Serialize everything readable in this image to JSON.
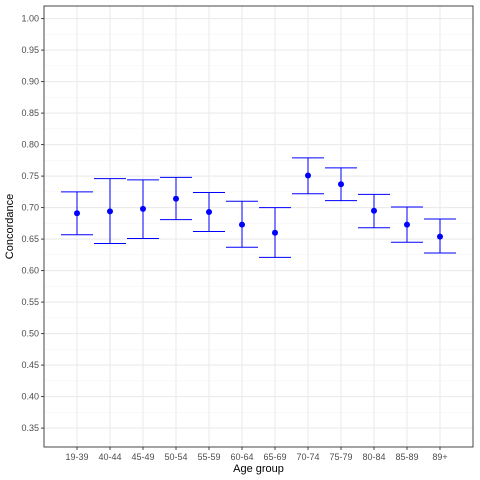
{
  "chart_data": {
    "type": "scatter",
    "subtype": "point-with-error-bars",
    "title": "",
    "xlabel": "Age group",
    "ylabel": "Concordance",
    "categories": [
      "19-39",
      "40-44",
      "45-49",
      "50-54",
      "55-59",
      "60-64",
      "65-69",
      "70-74",
      "75-79",
      "80-84",
      "85-89",
      "89+"
    ],
    "values": [
      0.691,
      0.694,
      0.698,
      0.714,
      0.693,
      0.673,
      0.66,
      0.751,
      0.737,
      0.695,
      0.673,
      0.654
    ],
    "lower": [
      0.657,
      0.643,
      0.651,
      0.681,
      0.662,
      0.637,
      0.621,
      0.722,
      0.711,
      0.668,
      0.645,
      0.628
    ],
    "upper": [
      0.725,
      0.746,
      0.744,
      0.748,
      0.724,
      0.71,
      0.7,
      0.779,
      0.763,
      0.721,
      0.701,
      0.682
    ],
    "ylim": [
      0.32,
      1.02
    ],
    "yticks": [
      0.35,
      0.4,
      0.45,
      0.5,
      0.55,
      0.6,
      0.65,
      0.7,
      0.75,
      0.8,
      0.85,
      0.9,
      0.95,
      1.0
    ],
    "ytick_labels": [
      "0.35",
      "0.40",
      "0.45",
      "0.50",
      "0.55",
      "0.60",
      "0.65",
      "0.70",
      "0.75",
      "0.80",
      "0.85",
      "0.90",
      "0.95",
      "1.00"
    ],
    "grid": true,
    "legend": "none",
    "colors": {
      "point": "#0000ff",
      "errorbar": "#0000ff",
      "grid_major": "#ebebeb",
      "grid_minor": "#f5f5f5",
      "panel_border": "#333333",
      "tick_text": "#4d4d4d"
    }
  }
}
